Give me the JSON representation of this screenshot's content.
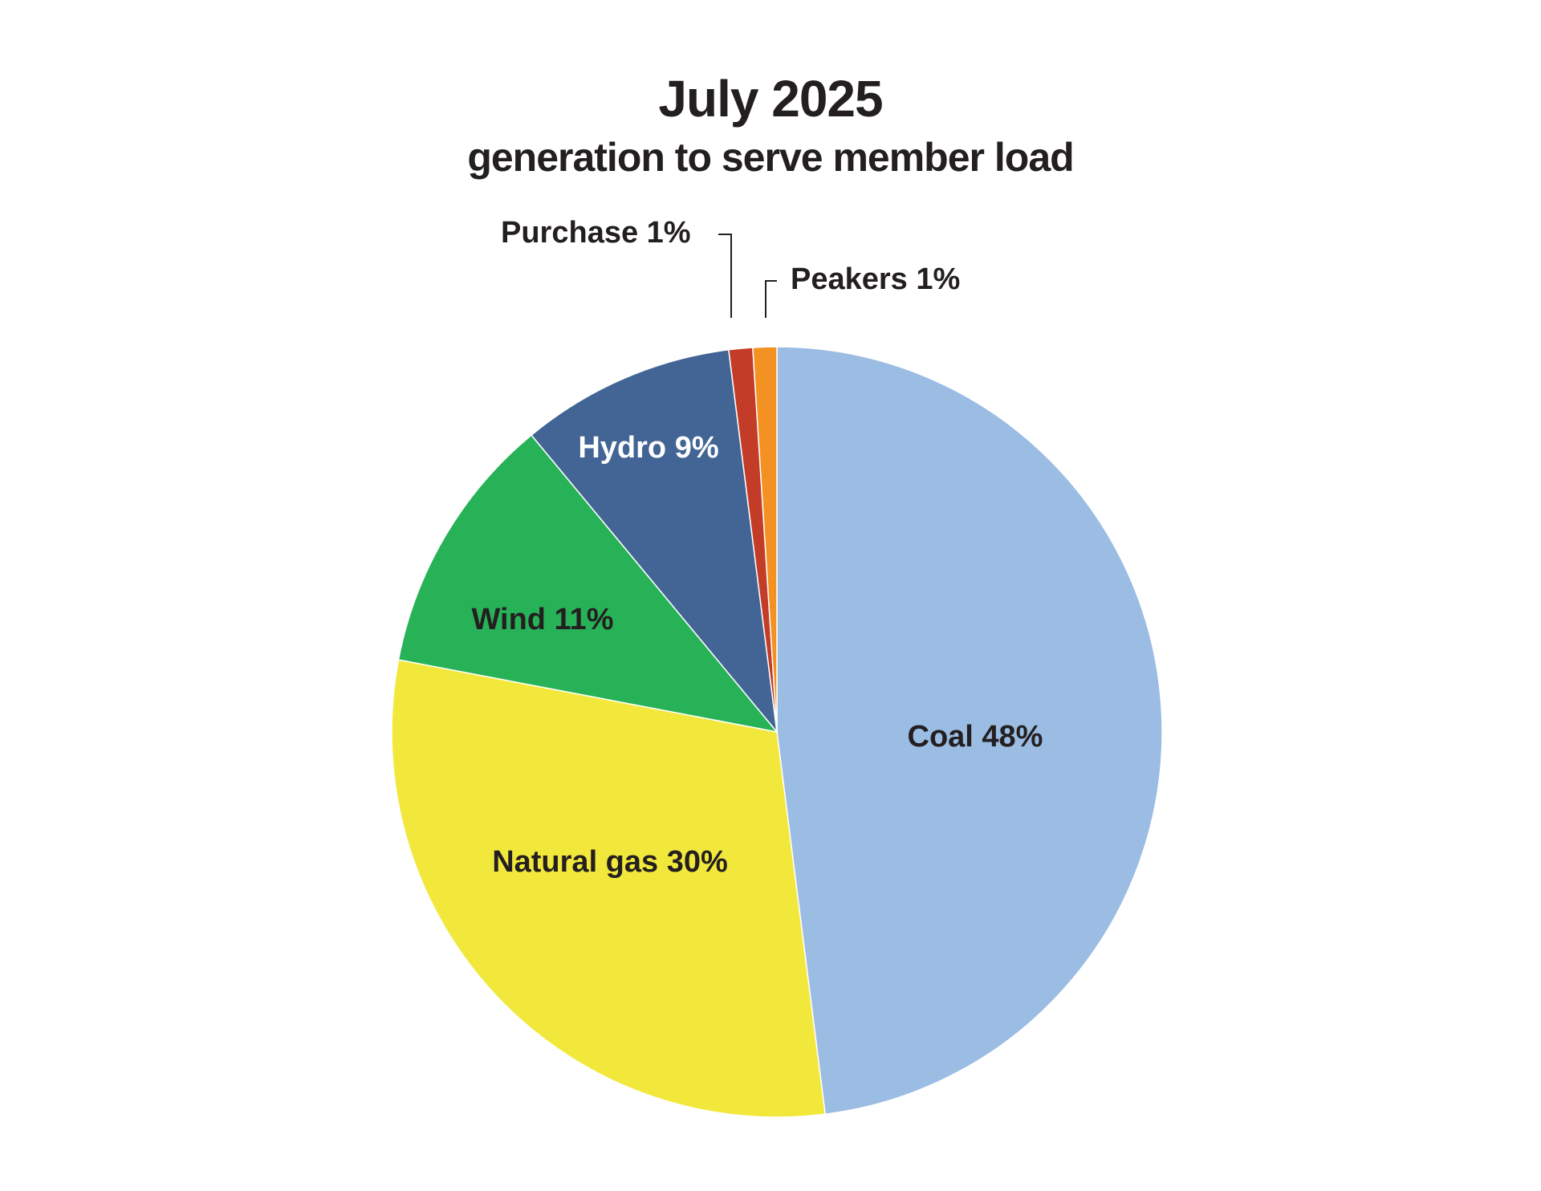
{
  "chart_data": {
    "type": "pie",
    "title": "July 2025",
    "subtitle": "generation to serve member load",
    "slices": [
      {
        "label": "Coal 48%",
        "name": "Coal",
        "value": 48,
        "color": "#9bbce3",
        "text_color": "#231f20"
      },
      {
        "label": "Natural gas 30%",
        "name": "Natural gas",
        "value": 30,
        "color": "#f2e83c",
        "text_color": "#231f20"
      },
      {
        "label": "Wind 11%",
        "name": "Wind",
        "value": 11,
        "color": "#28b257",
        "text_color": "#231f20"
      },
      {
        "label": "Hydro 9%",
        "name": "Hydro",
        "value": 9,
        "color": "#426595",
        "text_color": "#ffffff"
      },
      {
        "label": "Purchase 1%",
        "name": "Purchase",
        "value": 1,
        "color": "#c33c28",
        "text_color": "#231f20"
      },
      {
        "label": "Peakers 1%",
        "name": "Peakers",
        "value": 1,
        "color": "#f39223",
        "text_color": "#231f20"
      }
    ],
    "start": "12 o'clock",
    "direction": "clockwise",
    "legend": "none",
    "labels": "on slices; small slices labelled outside with leader lines"
  }
}
